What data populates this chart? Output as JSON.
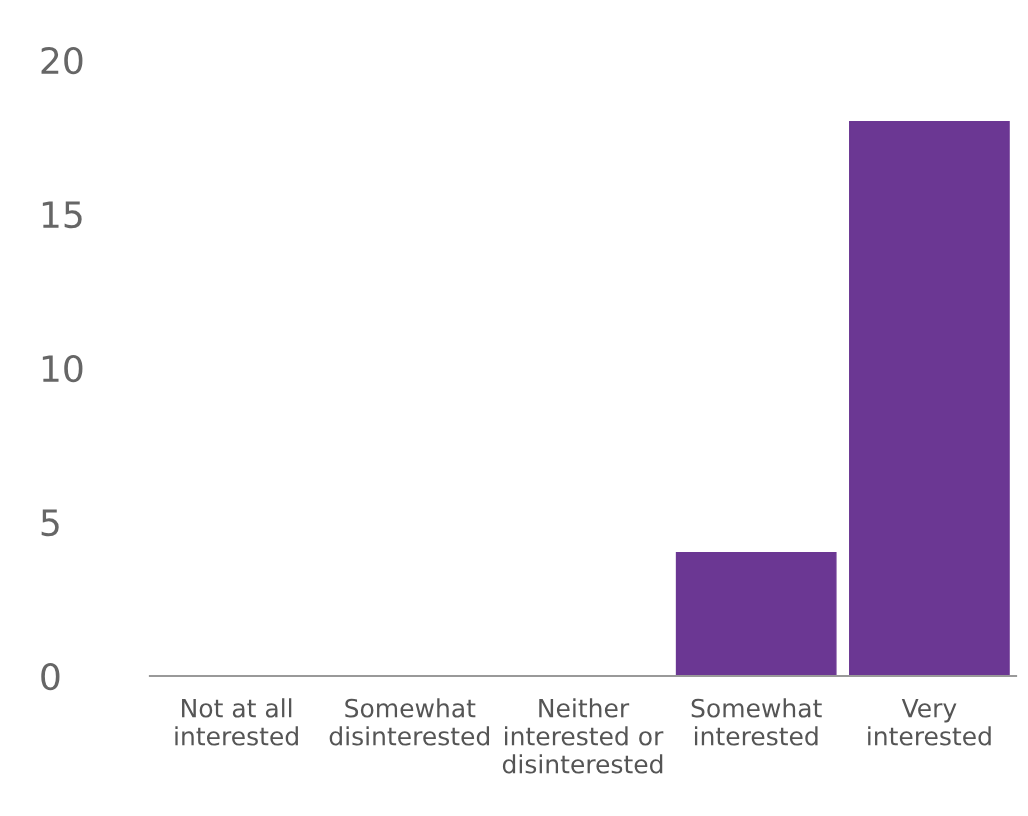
{
  "chart_data": {
    "type": "bar",
    "categories": [
      "Not at all\ninterested",
      "Somewhat\ndisinterested",
      "Neither\ninterested or\ndisinterested",
      "Somewhat\ninterested",
      "Very\ninterested"
    ],
    "values": [
      0,
      0,
      0,
      4,
      18
    ],
    "color": "#6b3793",
    "ylim": [
      0,
      20
    ],
    "yticks": [
      0,
      5,
      10,
      15,
      20
    ],
    "grid": false,
    "legend": false
  }
}
